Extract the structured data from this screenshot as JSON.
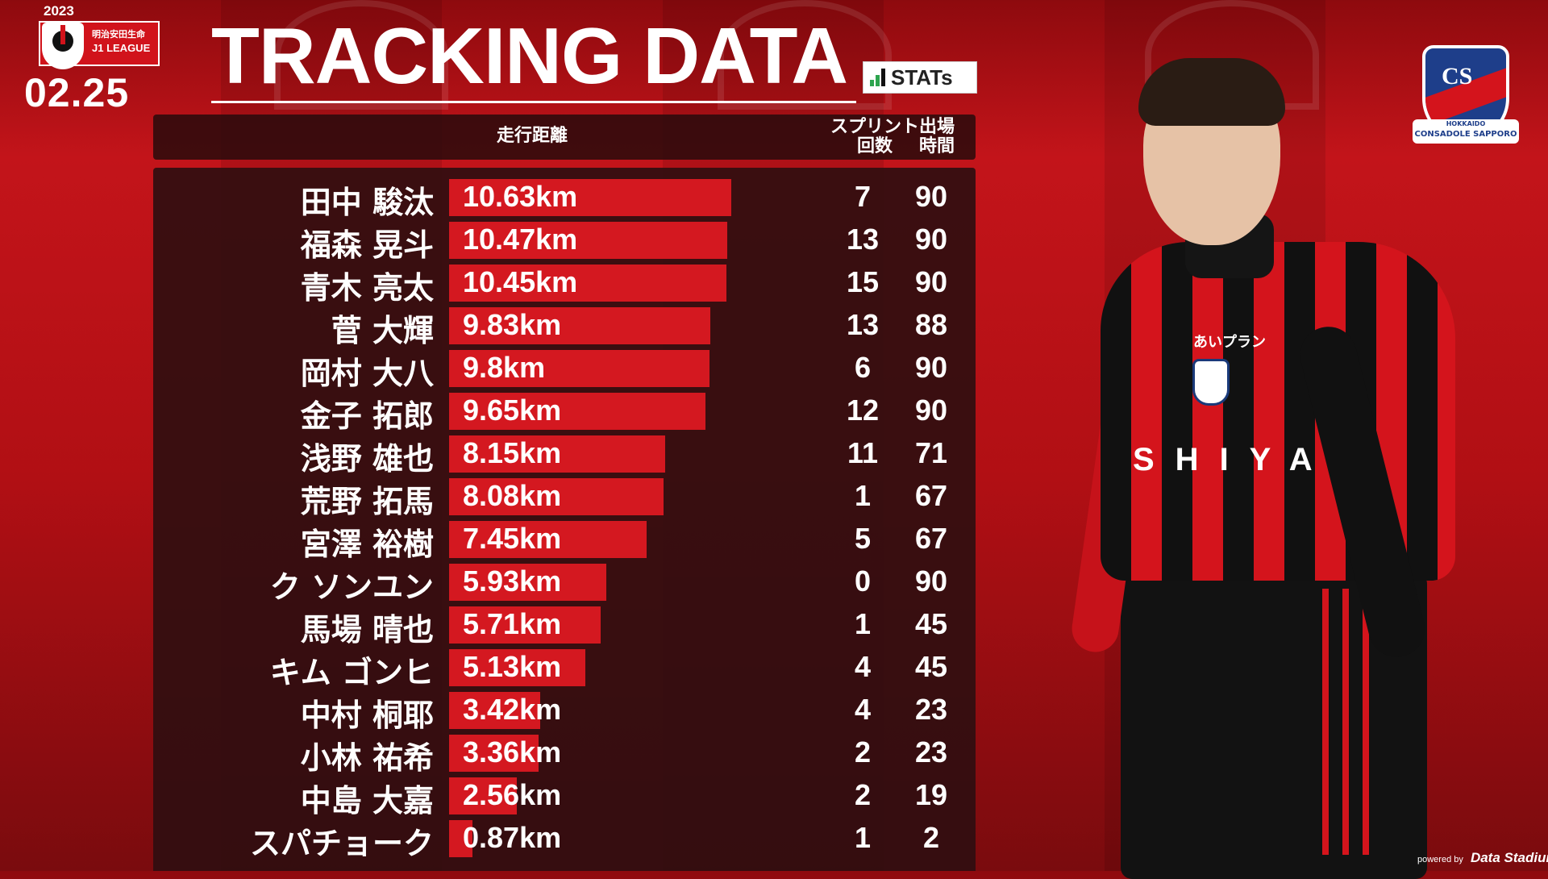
{
  "league": {
    "year": "2023",
    "sponsor_line": "明治安田生命",
    "league_line": "J1 LEAGUE",
    "icon": "j-league-logo-icon"
  },
  "match": {
    "date": "02.25"
  },
  "title": "TRACKING DATA",
  "stats_logo": {
    "text": "STATs",
    "icon": "bar-chart-icon"
  },
  "headers": {
    "distance": "走行距離",
    "sprint_line1": "スプリント",
    "sprint_line2": "回数",
    "minutes_line1": "出場",
    "minutes_line2": "時間"
  },
  "colors": {
    "bar": "#d41820",
    "background": "#c3141a",
    "panel": "#300e10"
  },
  "players": [
    {
      "name": "田中 駿汰",
      "distance": "10.63km",
      "distance_km": 10.63,
      "sprints": "7",
      "minutes": "90"
    },
    {
      "name": "福森 晃斗",
      "distance": "10.47km",
      "distance_km": 10.47,
      "sprints": "13",
      "minutes": "90"
    },
    {
      "name": "青木 亮太",
      "distance": "10.45km",
      "distance_km": 10.45,
      "sprints": "15",
      "minutes": "90"
    },
    {
      "name": "菅 大輝",
      "distance": "9.83km",
      "distance_km": 9.83,
      "sprints": "13",
      "minutes": "88"
    },
    {
      "name": "岡村 大八",
      "distance": "9.8km",
      "distance_km": 9.8,
      "sprints": "6",
      "minutes": "90"
    },
    {
      "name": "金子 拓郎",
      "distance": "9.65km",
      "distance_km": 9.65,
      "sprints": "12",
      "minutes": "90"
    },
    {
      "name": "浅野 雄也",
      "distance": "8.15km",
      "distance_km": 8.15,
      "sprints": "11",
      "minutes": "71"
    },
    {
      "name": "荒野 拓馬",
      "distance": "8.08km",
      "distance_km": 8.08,
      "sprints": "1",
      "minutes": "67"
    },
    {
      "name": "宮澤 裕樹",
      "distance": "7.45km",
      "distance_km": 7.45,
      "sprints": "5",
      "minutes": "67"
    },
    {
      "name": "ク ソンユン",
      "distance": "5.93km",
      "distance_km": 5.93,
      "sprints": "0",
      "minutes": "90"
    },
    {
      "name": "馬場 晴也",
      "distance": "5.71km",
      "distance_km": 5.71,
      "sprints": "1",
      "minutes": "45"
    },
    {
      "name": "キム ゴンヒ",
      "distance": "5.13km",
      "distance_km": 5.13,
      "sprints": "4",
      "minutes": "45"
    },
    {
      "name": "中村 桐耶",
      "distance": "3.42km",
      "distance_km": 3.42,
      "sprints": "4",
      "minutes": "23"
    },
    {
      "name": "小林 祐希",
      "distance": "3.36km",
      "distance_km": 3.36,
      "sprints": "2",
      "minutes": "23"
    },
    {
      "name": "中島 大嘉",
      "distance": "2.56km",
      "distance_km": 2.56,
      "sprints": "2",
      "minutes": "19"
    },
    {
      "name": "スパチョーク",
      "distance": "0.87km",
      "distance_km": 0.87,
      "sprints": "1",
      "minutes": "2"
    }
  ],
  "player_photo": {
    "sponsor_text": "SHIYA",
    "chest_text": "あいプラン"
  },
  "club": {
    "letters": "CS",
    "band_line1": "HOKKAIDO",
    "band_line2": "CONSADOLE SAPPORO",
    "icon": "club-crest-icon"
  },
  "footer": {
    "powered_label": "powered by",
    "brand": "Data Stadium"
  }
}
